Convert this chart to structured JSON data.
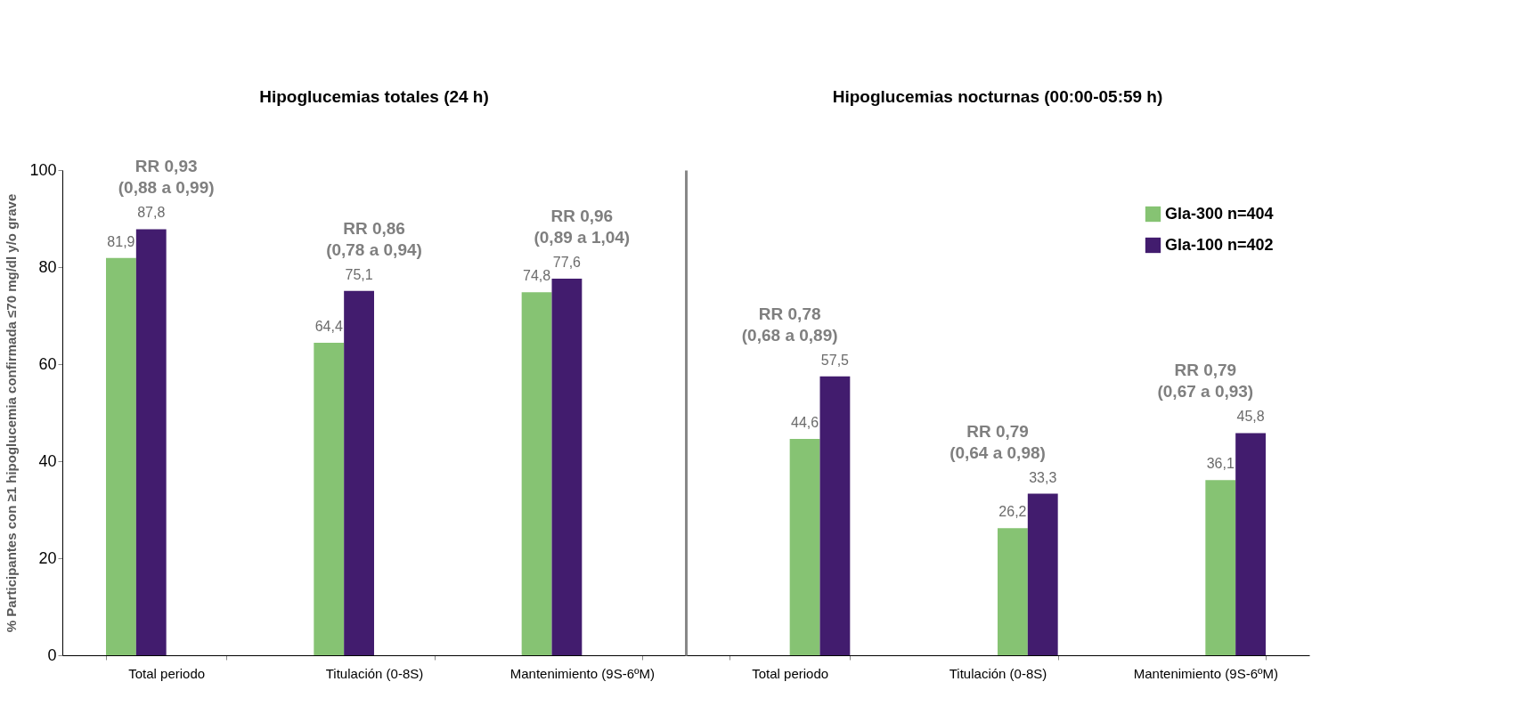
{
  "chart_data": [
    {
      "type": "bar",
      "title": "Hipoglucemias totales (24 h)",
      "ylabel": "% Participantes con ≥1  hipoglucemia confirmada ≤70 mg/dl y/o grave",
      "categories": [
        "Total periodo",
        "Titulación (0-8S)",
        "Mantenimiento (9S-6ºM)"
      ],
      "series": [
        {
          "color": "#86c373",
          "values": [
            81.9,
            64.4,
            74.8
          ],
          "value_labels": [
            "81,9",
            "64,4",
            "74,8"
          ]
        },
        {
          "color": "#421c6e",
          "values": [
            87.8,
            75.1,
            77.6
          ],
          "value_labels": [
            "87,8",
            "75,1",
            "77,6"
          ]
        }
      ],
      "ylim": [
        0,
        100
      ],
      "yticks": [
        0,
        20,
        40,
        60,
        80,
        100
      ],
      "grid": false,
      "legend": false,
      "annotations": [
        "RR 0,93\n(0,88 a 0,99)",
        "RR 0,86\n(0,78 a 0,94)",
        "RR 0,96\n(0,89 a 1,04)"
      ]
    },
    {
      "type": "bar",
      "title": "Hipoglucemias nocturnas (00:00-05:59 h)",
      "categories": [
        "Total periodo",
        "Titulación (0-8S)",
        "Mantenimiento (9S-6ºM)"
      ],
      "series": [
        {
          "name": "Gla-300 n=404",
          "color": "#86c373",
          "values": [
            44.6,
            26.2,
            36.1
          ],
          "value_labels": [
            "44,6",
            "26,2",
            "36,1"
          ]
        },
        {
          "name": "Gla-100 n=402",
          "color": "#421c6e",
          "values": [
            57.5,
            33.3,
            45.8
          ],
          "value_labels": [
            "57,5",
            "33,3",
            "45,8"
          ]
        }
      ],
      "ylim": [
        0,
        100
      ],
      "yticks": [
        0,
        20,
        40,
        60,
        80,
        100
      ],
      "tick_labels": "x",
      "grid": false,
      "legend": "top right",
      "annotations": [
        "RR 0,78\n(0,68 a 0,89)",
        "RR 0,79\n(0,64 a 0,98)",
        "RR 0,79\n(0,67 a 0,93)"
      ]
    }
  ]
}
